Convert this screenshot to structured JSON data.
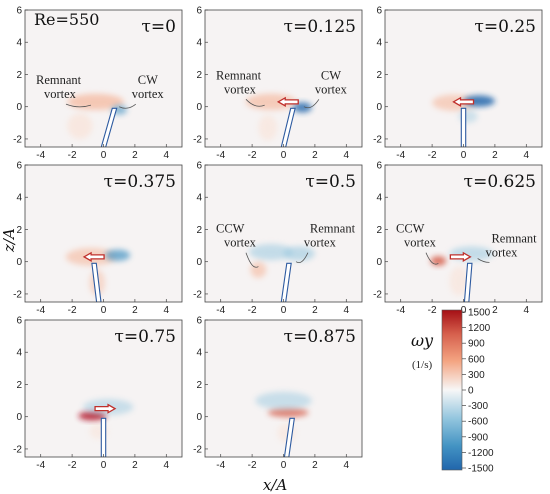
{
  "figure": {
    "reynolds_label": "Re=550",
    "x_axis_label": "x/A",
    "z_axis_label": "z/A",
    "x_ticks": [
      "-4",
      "-2",
      "0",
      "2",
      "4"
    ],
    "z_ticks": [
      "6",
      "4",
      "2",
      "0",
      "-2"
    ],
    "panels": [
      {
        "tau": "τ=0",
        "annotations": [
          {
            "lines": [
              "Remnant",
              "vortex"
            ]
          },
          {
            "lines": [
              "CW",
              "vortex"
            ]
          }
        ]
      },
      {
        "tau": "τ=0.125",
        "annotations": [
          {
            "lines": [
              "Remnant",
              "vortex"
            ]
          },
          {
            "lines": [
              "CW",
              "vortex"
            ]
          }
        ]
      },
      {
        "tau": "τ=0.25",
        "annotations": []
      },
      {
        "tau": "τ=0.375",
        "annotations": []
      },
      {
        "tau": "τ=0.5",
        "annotations": [
          {
            "lines": [
              "CCW",
              "vortex"
            ]
          },
          {
            "lines": [
              "Remnant",
              "vortex"
            ]
          }
        ]
      },
      {
        "tau": "τ=0.625",
        "annotations": [
          {
            "lines": [
              "CCW",
              "vortex"
            ]
          },
          {
            "lines": [
              "Remnant",
              "vortex"
            ]
          }
        ]
      },
      {
        "tau": "τ=0.75",
        "annotations": []
      },
      {
        "tau": "τ=0.875",
        "annotations": []
      }
    ],
    "colorbar": {
      "title": "ωy",
      "unit": "(1/s)",
      "ticks": [
        "1500",
        "1200",
        "900",
        "600",
        "300",
        "0",
        "-300",
        "-600",
        "-900",
        "-1200",
        "-1500"
      ],
      "range": [
        -1500,
        1500
      ],
      "colors": {
        "positive": "#b2182b",
        "neutral": "#f7f7f7",
        "negative": "#2166ac"
      }
    }
  }
}
